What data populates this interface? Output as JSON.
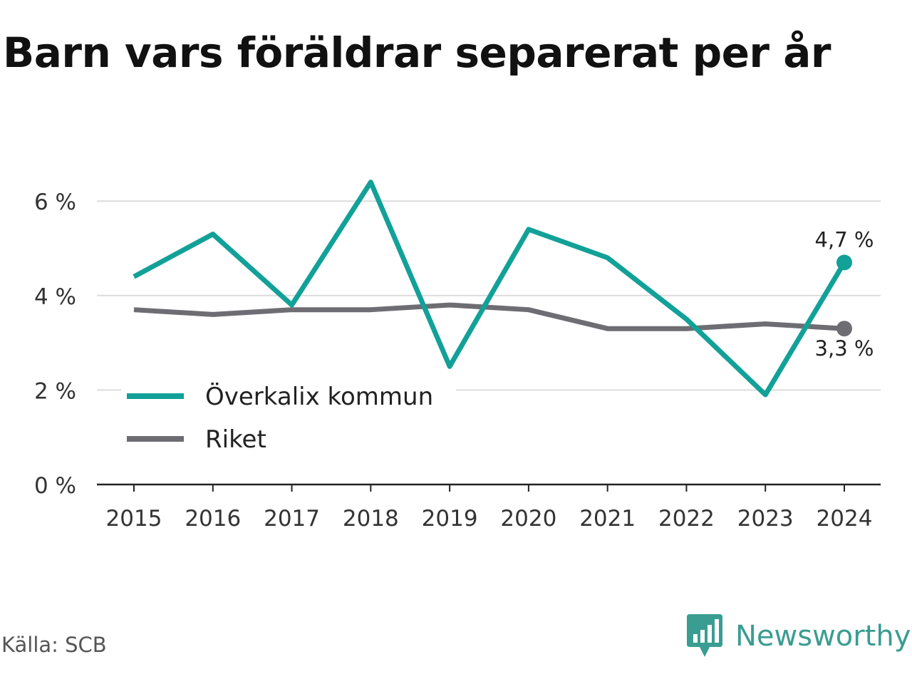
{
  "title": "Barn vars föräldrar separerat per år",
  "source": "Källa: SCB",
  "brand": {
    "name": "Newsworthy",
    "icon": "newsworthy-logo-icon",
    "color": "#3a9d91"
  },
  "chart_data": {
    "type": "line",
    "title": "Barn vars föräldrar separerat per år",
    "x": [
      "2015",
      "2016",
      "2017",
      "2018",
      "2019",
      "2020",
      "2021",
      "2022",
      "2023",
      "2024"
    ],
    "ylim": [
      0,
      7
    ],
    "yticks": [
      {
        "value": 0,
        "label": "0 %"
      },
      {
        "value": 2,
        "label": "2 %"
      },
      {
        "value": 4,
        "label": "4 %"
      },
      {
        "value": 6,
        "label": "6 %"
      }
    ],
    "grid": true,
    "legend_position": "bottom-left",
    "series": [
      {
        "name": "Överkalix kommun",
        "color": "#12a198",
        "values": [
          4.4,
          5.3,
          3.8,
          6.4,
          2.5,
          5.4,
          4.8,
          3.5,
          1.9,
          4.7
        ],
        "end_label": "4,7 %"
      },
      {
        "name": "Riket",
        "color": "#6e6d73",
        "values": [
          3.7,
          3.6,
          3.7,
          3.7,
          3.8,
          3.7,
          3.3,
          3.3,
          3.4,
          3.3
        ],
        "end_label": "3,3 %"
      }
    ]
  }
}
